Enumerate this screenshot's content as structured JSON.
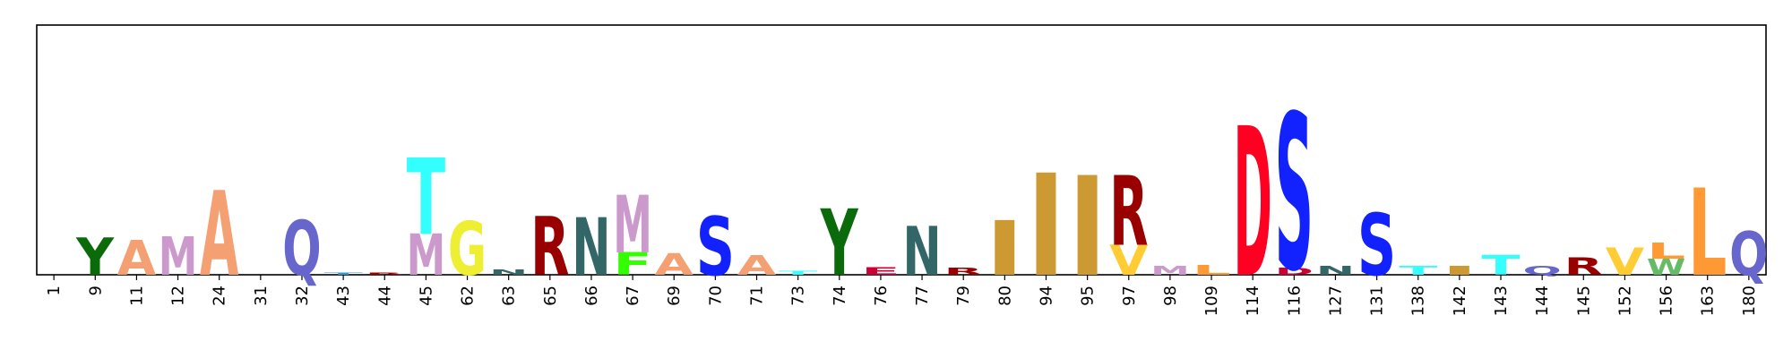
{
  "chart_data": {
    "type": "logo",
    "categories": [
      "1",
      "9",
      "11",
      "12",
      "24",
      "31",
      "32",
      "43",
      "44",
      "45",
      "62",
      "63",
      "65",
      "66",
      "67",
      "69",
      "70",
      "71",
      "73",
      "74",
      "76",
      "77",
      "79",
      "80",
      "94",
      "95",
      "97",
      "98",
      "109",
      "114",
      "116",
      "127",
      "131",
      "138",
      "142",
      "143",
      "144",
      "145",
      "152",
      "156",
      "163",
      "180"
    ],
    "stacks": [
      [],
      [
        {
          "letter": "Y",
          "color": "#0b6b0b",
          "value": 0.15
        }
      ],
      [
        {
          "letter": "A",
          "color": "#f4a072",
          "value": 0.14
        }
      ],
      [
        {
          "letter": "M",
          "color": "#cc99cc",
          "value": 0.155
        }
      ],
      [
        {
          "letter": "A",
          "color": "#f4a072",
          "value": 0.34
        }
      ],
      [],
      [
        {
          "letter": "Q",
          "color": "#6666cc",
          "value": 0.22
        }
      ],
      [
        {
          "letter": "T",
          "color": "#3399cc",
          "value": 0.01
        }
      ],
      [
        {
          "letter": "R",
          "color": "#990000",
          "value": 0.01
        }
      ],
      [
        {
          "letter": "M",
          "color": "#cc99cc",
          "value": 0.165
        },
        {
          "letter": "T",
          "color": "#33ffff",
          "value": 0.305
        }
      ],
      [
        {
          "letter": "G",
          "color": "#eeee33",
          "value": 0.215
        }
      ],
      [
        {
          "letter": "N",
          "color": "#336666",
          "value": 0.02
        }
      ],
      [
        {
          "letter": "R",
          "color": "#990000",
          "value": 0.235
        }
      ],
      [
        {
          "letter": "N",
          "color": "#336666",
          "value": 0.23
        }
      ],
      [
        {
          "letter": "F",
          "color": "#33ff00",
          "value": 0.09
        },
        {
          "letter": "M",
          "color": "#cc99cc",
          "value": 0.23
        }
      ],
      [
        {
          "letter": "A",
          "color": "#f4a072",
          "value": 0.085
        }
      ],
      [
        {
          "letter": "S",
          "color": "#1122ff",
          "value": 0.235
        }
      ],
      [
        {
          "letter": "A",
          "color": "#f4a072",
          "value": 0.08
        }
      ],
      [
        {
          "letter": "T",
          "color": "#33ffff",
          "value": 0.015
        }
      ],
      [
        {
          "letter": "Y",
          "color": "#0b6b0b",
          "value": 0.265
        }
      ],
      [
        {
          "letter": "E",
          "color": "#cc0033",
          "value": 0.03
        }
      ],
      [
        {
          "letter": "N",
          "color": "#336666",
          "value": 0.195
        }
      ],
      [
        {
          "letter": "R",
          "color": "#990000",
          "value": 0.027
        }
      ],
      [
        {
          "letter": "I",
          "color": "#cc9933",
          "value": 0.22
        }
      ],
      [
        {
          "letter": "I",
          "color": "#cc9933",
          "value": 0.41
        }
      ],
      [
        {
          "letter": "I",
          "color": "#cc9933",
          "value": 0.4
        }
      ],
      [
        {
          "letter": "V",
          "color": "#ffcc33",
          "value": 0.12
        },
        {
          "letter": "R",
          "color": "#990000",
          "value": 0.28
        }
      ],
      [
        {
          "letter": "M",
          "color": "#cc99cc",
          "value": 0.035
        }
      ],
      [
        {
          "letter": "L",
          "color": "#ff9933",
          "value": 0.04
        }
      ],
      [
        {
          "letter": "D",
          "color": "#ff0022",
          "value": 0.6
        }
      ],
      [
        {
          "letter": "D",
          "color": "#cc0033",
          "value": 0.027
        },
        {
          "letter": "S",
          "color": "#1122ff",
          "value": 0.625
        }
      ],
      [
        {
          "letter": "N",
          "color": "#336666",
          "value": 0.035
        }
      ],
      [
        {
          "letter": "S",
          "color": "#1122ff",
          "value": 0.25
        }
      ],
      [
        {
          "letter": "T",
          "color": "#33ffff",
          "value": 0.035
        }
      ],
      [
        {
          "letter": "I",
          "color": "#cc9933",
          "value": 0.035
        }
      ],
      [
        {
          "letter": "T",
          "color": "#33ffff",
          "value": 0.08
        }
      ],
      [
        {
          "letter": "Q",
          "color": "#6666cc",
          "value": 0.035
        }
      ],
      [
        {
          "letter": "R",
          "color": "#990000",
          "value": 0.07
        }
      ],
      [
        {
          "letter": "V",
          "color": "#ffcc33",
          "value": 0.11
        }
      ],
      [
        {
          "letter": "W",
          "color": "#66bb66",
          "value": 0.065
        },
        {
          "letter": "L",
          "color": "#ff9933",
          "value": 0.065
        }
      ],
      [
        {
          "letter": "L",
          "color": "#ff9933",
          "value": 0.35
        }
      ],
      [
        {
          "letter": "Q",
          "color": "#6666cc",
          "value": 0.175
        }
      ]
    ],
    "ylim": [
      0,
      1
    ]
  }
}
